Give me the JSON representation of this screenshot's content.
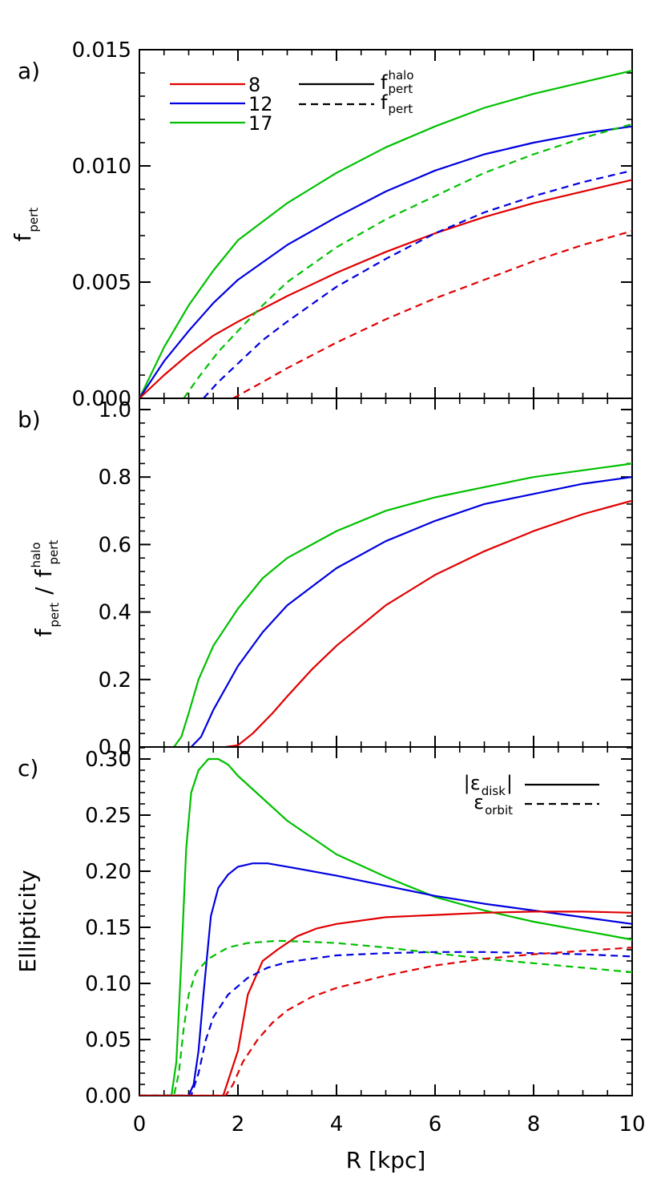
{
  "colors": {
    "c8": "#e00000",
    "c12": "#0000e0",
    "c17": "#00c000",
    "axis": "#000000"
  },
  "chart_data": [
    {
      "panel": "a)",
      "type": "line",
      "x_range": [
        0,
        10
      ],
      "ylim": [
        0,
        0.015
      ],
      "ylabel": {
        "main": "f",
        "sub": "pert"
      },
      "yticks": [
        {
          "v": 0.0,
          "label": "0.000"
        },
        {
          "v": 0.005,
          "label": "0.005"
        },
        {
          "v": 0.01,
          "label": "0.010"
        },
        {
          "v": 0.015,
          "label": "0.015"
        }
      ],
      "legend_numbers": {
        "placement": "top-left",
        "items": [
          {
            "label": "8",
            "color_key": "c8"
          },
          {
            "label": "12",
            "color_key": "c12"
          },
          {
            "label": "17",
            "color_key": "c17"
          }
        ]
      },
      "legend_styles": {
        "placement": "top-center",
        "items": [
          {
            "style": "solid",
            "main": "f",
            "sub": "pert",
            "sup": "halo"
          },
          {
            "style": "dashed",
            "main": "f",
            "sub": "pert",
            "sup": ""
          }
        ]
      },
      "series": [
        {
          "color_key": "c17",
          "style": "solid",
          "points": [
            [
              0,
              0
            ],
            [
              0.5,
              0.0022
            ],
            [
              1,
              0.004
            ],
            [
              1.5,
              0.0055
            ],
            [
              2,
              0.0068
            ],
            [
              3,
              0.0084
            ],
            [
              4,
              0.0097
            ],
            [
              5,
              0.0108
            ],
            [
              6,
              0.0117
            ],
            [
              7,
              0.0125
            ],
            [
              8,
              0.0131
            ],
            [
              9,
              0.0136
            ],
            [
              10,
              0.0141
            ]
          ]
        },
        {
          "color_key": "c12",
          "style": "solid",
          "points": [
            [
              0,
              0
            ],
            [
              0.5,
              0.0016
            ],
            [
              1,
              0.0029
            ],
            [
              1.5,
              0.0041
            ],
            [
              2,
              0.0051
            ],
            [
              3,
              0.0066
            ],
            [
              4,
              0.0078
            ],
            [
              5,
              0.0089
            ],
            [
              6,
              0.0098
            ],
            [
              7,
              0.0105
            ],
            [
              8,
              0.011
            ],
            [
              9,
              0.0114
            ],
            [
              10,
              0.0117
            ]
          ]
        },
        {
          "color_key": "c8",
          "style": "solid",
          "points": [
            [
              0,
              0
            ],
            [
              0.5,
              0.001
            ],
            [
              1,
              0.0019
            ],
            [
              1.5,
              0.0027
            ],
            [
              2,
              0.0033
            ],
            [
              3,
              0.0044
            ],
            [
              4,
              0.0054
            ],
            [
              5,
              0.0063
            ],
            [
              6,
              0.0071
            ],
            [
              7,
              0.0078
            ],
            [
              8,
              0.0084
            ],
            [
              9,
              0.0089
            ],
            [
              10,
              0.0094
            ]
          ]
        },
        {
          "color_key": "c17",
          "style": "dashed",
          "points": [
            [
              0.9,
              0
            ],
            [
              1.2,
              0.0009
            ],
            [
              1.6,
              0.002
            ],
            [
              2,
              0.0029
            ],
            [
              2.5,
              0.004
            ],
            [
              3,
              0.005
            ],
            [
              4,
              0.0065
            ],
            [
              5,
              0.0077
            ],
            [
              6,
              0.0087
            ],
            [
              7,
              0.0097
            ],
            [
              8,
              0.0105
            ],
            [
              9,
              0.0112
            ],
            [
              10,
              0.0118
            ]
          ]
        },
        {
          "color_key": "c12",
          "style": "dashed",
          "points": [
            [
              1.3,
              0
            ],
            [
              1.6,
              0.0007
            ],
            [
              2,
              0.0015
            ],
            [
              2.5,
              0.0025
            ],
            [
              3,
              0.0033
            ],
            [
              4,
              0.0048
            ],
            [
              5,
              0.006
            ],
            [
              6,
              0.0071
            ],
            [
              7,
              0.008
            ],
            [
              8,
              0.0087
            ],
            [
              9,
              0.0093
            ],
            [
              10,
              0.0098
            ]
          ]
        },
        {
          "color_key": "c8",
          "style": "dashed",
          "points": [
            [
              1.9,
              0
            ],
            [
              2.5,
              0.0007
            ],
            [
              3,
              0.0013
            ],
            [
              4,
              0.0024
            ],
            [
              5,
              0.0034
            ],
            [
              6,
              0.0043
            ],
            [
              7,
              0.0051
            ],
            [
              8,
              0.0059
            ],
            [
              9,
              0.0066
            ],
            [
              10,
              0.0072
            ]
          ]
        }
      ]
    },
    {
      "panel": "b)",
      "type": "line",
      "x_range": [
        0,
        10
      ],
      "ylim": [
        0,
        1.0
      ],
      "ylabel": {
        "num": "f",
        "num_sub": "pert",
        "slash": "/",
        "den": "f",
        "den_sub": "pert",
        "den_sup": "halo"
      },
      "yticks": [
        {
          "v": 0.0,
          "label": "0.0"
        },
        {
          "v": 0.2,
          "label": "0.2"
        },
        {
          "v": 0.4,
          "label": "0.4"
        },
        {
          "v": 0.6,
          "label": "0.6"
        },
        {
          "v": 0.8,
          "label": "0.8"
        },
        {
          "v": 1.0,
          "label": "1.0"
        }
      ],
      "series": [
        {
          "color_key": "c17",
          "style": "solid",
          "points": [
            [
              0.7,
              0
            ],
            [
              0.85,
              0.03
            ],
            [
              1.0,
              0.1
            ],
            [
              1.2,
              0.2
            ],
            [
              1.5,
              0.3
            ],
            [
              2,
              0.41
            ],
            [
              2.5,
              0.5
            ],
            [
              3,
              0.56
            ],
            [
              4,
              0.64
            ],
            [
              5,
              0.7
            ],
            [
              6,
              0.74
            ],
            [
              7,
              0.77
            ],
            [
              8,
              0.8
            ],
            [
              9,
              0.82
            ],
            [
              10,
              0.84
            ]
          ]
        },
        {
          "color_key": "c12",
          "style": "solid",
          "points": [
            [
              1.05,
              0
            ],
            [
              1.25,
              0.03
            ],
            [
              1.5,
              0.11
            ],
            [
              2,
              0.24
            ],
            [
              2.5,
              0.34
            ],
            [
              3,
              0.42
            ],
            [
              4,
              0.53
            ],
            [
              5,
              0.61
            ],
            [
              6,
              0.67
            ],
            [
              7,
              0.72
            ],
            [
              8,
              0.75
            ],
            [
              9,
              0.78
            ],
            [
              10,
              0.8
            ]
          ]
        },
        {
          "color_key": "c8",
          "style": "solid",
          "points": [
            [
              1.75,
              0
            ],
            [
              2.0,
              0.005
            ],
            [
              2.3,
              0.04
            ],
            [
              2.7,
              0.1
            ],
            [
              3,
              0.15
            ],
            [
              3.5,
              0.23
            ],
            [
              4,
              0.3
            ],
            [
              5,
              0.42
            ],
            [
              6,
              0.51
            ],
            [
              7,
              0.58
            ],
            [
              8,
              0.64
            ],
            [
              9,
              0.69
            ],
            [
              10,
              0.73
            ]
          ]
        }
      ]
    },
    {
      "panel": "c)",
      "type": "line",
      "x_range": [
        0,
        10
      ],
      "ylim": [
        0,
        0.31
      ],
      "ylabel": {
        "main": "Ellipticity"
      },
      "xlabel": "R [kpc]",
      "xticks": [
        {
          "v": 0,
          "label": "0"
        },
        {
          "v": 2,
          "label": "2"
        },
        {
          "v": 4,
          "label": "4"
        },
        {
          "v": 6,
          "label": "6"
        },
        {
          "v": 8,
          "label": "8"
        },
        {
          "v": 10,
          "label": "10"
        }
      ],
      "yticks": [
        {
          "v": 0.0,
          "label": "0.00"
        },
        {
          "v": 0.05,
          "label": "0.05"
        },
        {
          "v": 0.1,
          "label": "0.10"
        },
        {
          "v": 0.15,
          "label": "0.15"
        },
        {
          "v": 0.2,
          "label": "0.20"
        },
        {
          "v": 0.25,
          "label": "0.25"
        },
        {
          "v": 0.3,
          "label": "0.30"
        }
      ],
      "legend_styles": {
        "placement": "top-right",
        "items": [
          {
            "style": "solid",
            "text": "|ε",
            "sub": "disk",
            "after": "|"
          },
          {
            "style": "dashed",
            "text": "ε",
            "sub": "orbit",
            "after": ""
          }
        ]
      },
      "series": [
        {
          "color_key": "c17",
          "style": "solid",
          "points": [
            [
              0,
              0
            ],
            [
              0.65,
              0
            ],
            [
              0.75,
              0.03
            ],
            [
              0.85,
              0.12
            ],
            [
              0.95,
              0.22
            ],
            [
              1.05,
              0.27
            ],
            [
              1.2,
              0.29
            ],
            [
              1.4,
              0.3
            ],
            [
              1.6,
              0.3
            ],
            [
              1.8,
              0.295
            ],
            [
              2,
              0.285
            ],
            [
              2.5,
              0.265
            ],
            [
              3,
              0.245
            ],
            [
              3.5,
              0.23
            ],
            [
              4,
              0.215
            ],
            [
              5,
              0.195
            ],
            [
              6,
              0.177
            ],
            [
              7,
              0.165
            ],
            [
              8,
              0.155
            ],
            [
              9,
              0.147
            ],
            [
              10,
              0.139
            ]
          ]
        },
        {
          "color_key": "c12",
          "style": "solid",
          "points": [
            [
              0,
              0
            ],
            [
              1.0,
              0
            ],
            [
              1.1,
              0.01
            ],
            [
              1.2,
              0.04
            ],
            [
              1.3,
              0.09
            ],
            [
              1.45,
              0.16
            ],
            [
              1.6,
              0.185
            ],
            [
              1.8,
              0.197
            ],
            [
              2,
              0.204
            ],
            [
              2.3,
              0.207
            ],
            [
              2.6,
              0.207
            ],
            [
              3,
              0.204
            ],
            [
              4,
              0.196
            ],
            [
              5,
              0.187
            ],
            [
              6,
              0.178
            ],
            [
              7,
              0.171
            ],
            [
              8,
              0.165
            ],
            [
              9,
              0.159
            ],
            [
              10,
              0.153
            ]
          ]
        },
        {
          "color_key": "c8",
          "style": "solid",
          "points": [
            [
              0,
              0
            ],
            [
              1.7,
              0
            ],
            [
              1.85,
              0.02
            ],
            [
              2.0,
              0.04
            ],
            [
              2.2,
              0.09
            ],
            [
              2.5,
              0.12
            ],
            [
              2.8,
              0.13
            ],
            [
              3.2,
              0.142
            ],
            [
              3.6,
              0.149
            ],
            [
              4,
              0.153
            ],
            [
              5,
              0.159
            ],
            [
              6,
              0.161
            ],
            [
              7,
              0.163
            ],
            [
              8,
              0.164
            ],
            [
              9,
              0.164
            ],
            [
              10,
              0.163
            ]
          ]
        },
        {
          "color_key": "c17",
          "style": "dashed",
          "points": [
            [
              0,
              0
            ],
            [
              0.7,
              0
            ],
            [
              0.8,
              0.02
            ],
            [
              0.9,
              0.06
            ],
            [
              1.0,
              0.09
            ],
            [
              1.15,
              0.11
            ],
            [
              1.4,
              0.122
            ],
            [
              1.8,
              0.132
            ],
            [
              2.2,
              0.136
            ],
            [
              2.8,
              0.138
            ],
            [
              3.5,
              0.137
            ],
            [
              4,
              0.136
            ],
            [
              5,
              0.132
            ],
            [
              6,
              0.127
            ],
            [
              7,
              0.122
            ],
            [
              8,
              0.118
            ],
            [
              9,
              0.114
            ],
            [
              10,
              0.11
            ]
          ]
        },
        {
          "color_key": "c12",
          "style": "dashed",
          "points": [
            [
              0,
              0
            ],
            [
              1.05,
              0
            ],
            [
              1.2,
              0.02
            ],
            [
              1.35,
              0.05
            ],
            [
              1.5,
              0.07
            ],
            [
              1.8,
              0.09
            ],
            [
              2.2,
              0.105
            ],
            [
              2.6,
              0.114
            ],
            [
              3,
              0.119
            ],
            [
              4,
              0.125
            ],
            [
              5,
              0.127
            ],
            [
              6,
              0.128
            ],
            [
              7,
              0.128
            ],
            [
              8,
              0.127
            ],
            [
              9,
              0.126
            ],
            [
              10,
              0.124
            ]
          ]
        },
        {
          "color_key": "c8",
          "style": "dashed",
          "points": [
            [
              0,
              0
            ],
            [
              1.75,
              0
            ],
            [
              1.9,
              0.01
            ],
            [
              2.1,
              0.03
            ],
            [
              2.4,
              0.05
            ],
            [
              2.7,
              0.065
            ],
            [
              3,
              0.076
            ],
            [
              3.5,
              0.088
            ],
            [
              4,
              0.096
            ],
            [
              5,
              0.107
            ],
            [
              6,
              0.116
            ],
            [
              7,
              0.122
            ],
            [
              8,
              0.126
            ],
            [
              9,
              0.129
            ],
            [
              10,
              0.132
            ]
          ]
        }
      ]
    }
  ]
}
